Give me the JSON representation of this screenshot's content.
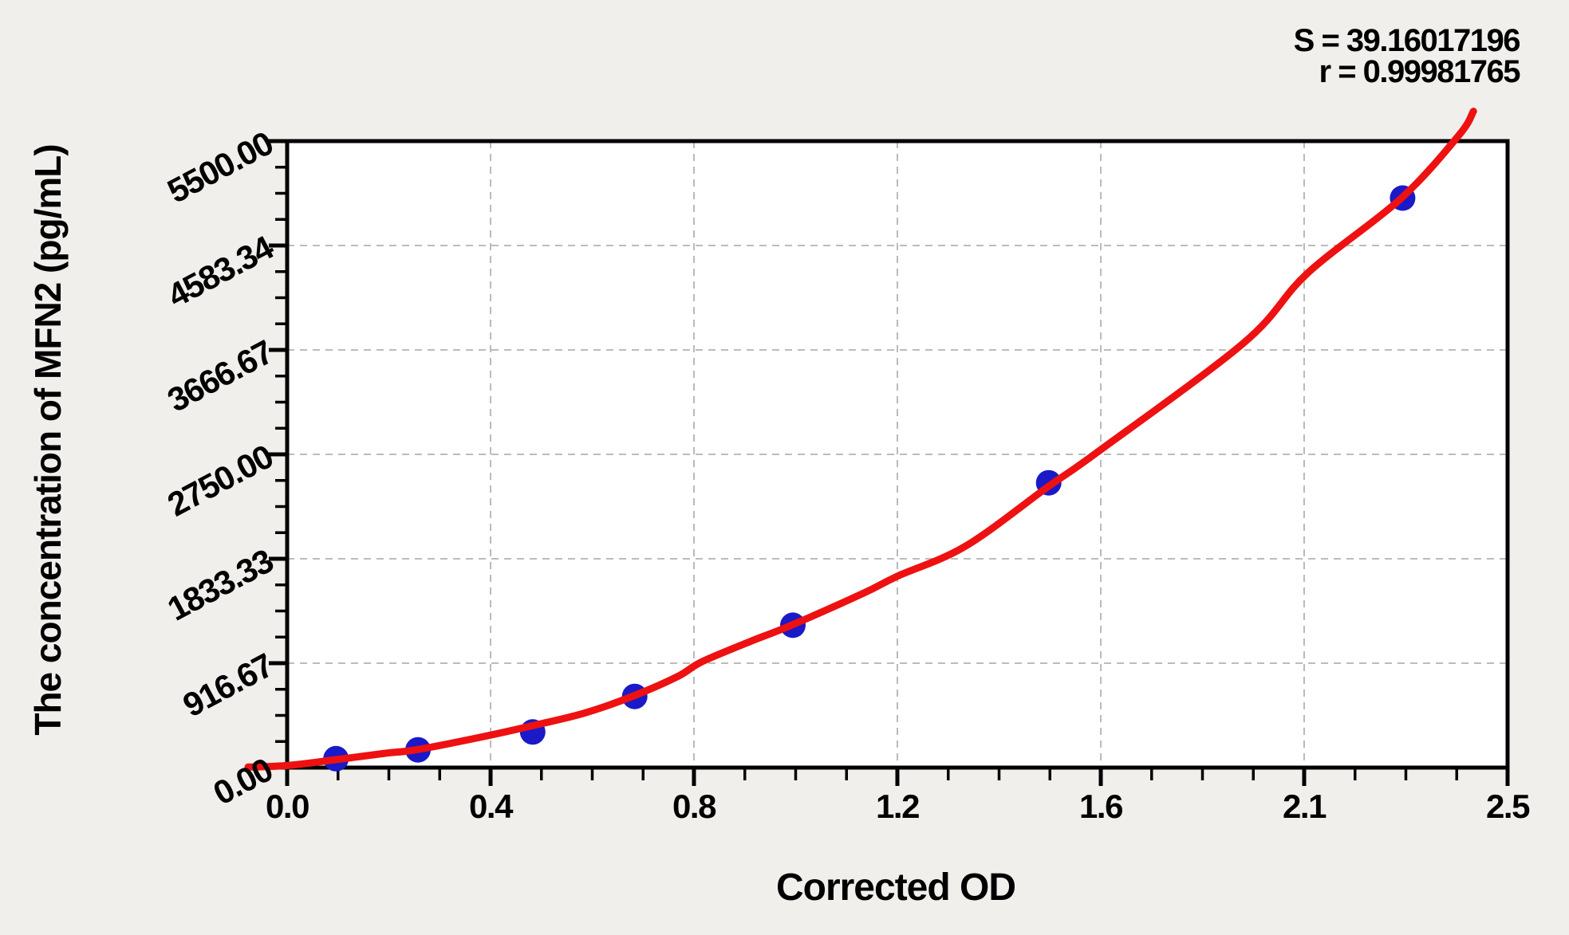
{
  "stats": {
    "s_line": "S = 39.16017196",
    "r_line": "r = 0.99981765"
  },
  "chart_data": {
    "type": "scatter",
    "title": "",
    "xlabel": "Corrected OD",
    "ylabel": "The concentration of MFN2 (pg/mL)",
    "xlim": [
      0,
      2.5
    ],
    "ylim": [
      0,
      5500
    ],
    "grid": "dashed major gridlines",
    "legend_position": "none",
    "x_ticks": [
      {
        "label": "0.0",
        "value": 0
      },
      {
        "label": "0.4",
        "value": 0.4167
      },
      {
        "label": "0.8",
        "value": 0.8333
      },
      {
        "label": "1.2",
        "value": 1.25
      },
      {
        "label": "1.6",
        "value": 1.6667
      },
      {
        "label": "2.1",
        "value": 2.0833
      },
      {
        "label": "2.5",
        "value": 2.5
      }
    ],
    "y_ticks": [
      {
        "label": "0.00",
        "value": 0
      },
      {
        "label": "916.67",
        "value": 916.67
      },
      {
        "label": "1833.33",
        "value": 1833.33
      },
      {
        "label": "2750.00",
        "value": 2750
      },
      {
        "label": "3666.67",
        "value": 3666.67
      },
      {
        "label": "4583.34",
        "value": 4583.34
      },
      {
        "label": "5500.00",
        "value": 5500
      }
    ],
    "minor_tick_divisions": 4,
    "series": [
      {
        "name": "standard points",
        "type": "scatter",
        "od": [
          0.1,
          0.268,
          0.503,
          0.712,
          1.036,
          1.56,
          2.285
        ],
        "concentration": [
          78.125,
          156.25,
          312.5,
          625,
          1250,
          2500,
          5000
        ]
      },
      {
        "name": "fitted curve",
        "type": "line",
        "od": [
          -0.08,
          0,
          0.1,
          0.2,
          0.27,
          0.4,
          0.5,
          0.61,
          0.71,
          0.8,
          0.85,
          0.95,
          1.03,
          1.18,
          1.25,
          1.39,
          1.56,
          1.66,
          1.96,
          2.09,
          2.28,
          2.4,
          2.43
        ],
        "concentration": [
          5,
          18,
          70,
          125,
          160,
          270,
          365,
          480,
          630,
          800,
          930,
          1110,
          1245,
          1530,
          1680,
          1945,
          2470,
          2770,
          3730,
          4340,
          4990,
          5550,
          5762
        ]
      }
    ],
    "colors": {
      "curve": "#ee1111",
      "point": "#1a1ac8",
      "grid": "#b3b3b3",
      "axis": "#000000",
      "plot_background": "#ffffff",
      "page_background": "#f0efec"
    }
  }
}
